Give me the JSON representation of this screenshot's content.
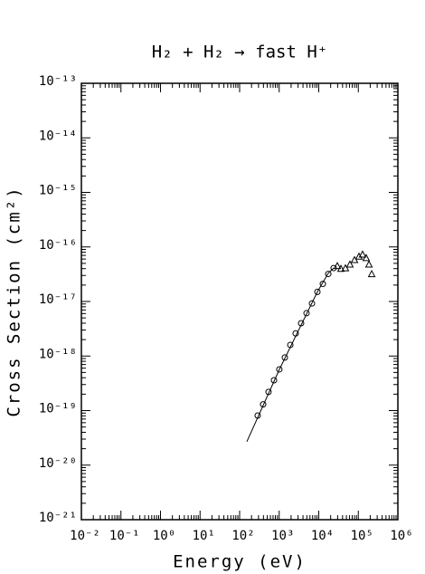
{
  "chart_data": {
    "type": "scatter",
    "title": "H₂ + H₂ → fast H⁺",
    "x_label": "Energy (eV)",
    "y_label": "Cross Section (cm²)",
    "log_x": true,
    "log_y": true,
    "minor_ticks": true,
    "xlim": [
      0.01,
      1000000
    ],
    "ylim": [
      1e-21,
      1e-13
    ],
    "xticks": [
      {
        "value": 0.01,
        "label": "10⁻²"
      },
      {
        "value": 0.1,
        "label": "10⁻¹"
      },
      {
        "value": 1,
        "label": "10⁰"
      },
      {
        "value": 10,
        "label": "10¹"
      },
      {
        "value": 100,
        "label": "10²"
      },
      {
        "value": 1000,
        "label": "10³"
      },
      {
        "value": 10000,
        "label": "10⁴"
      },
      {
        "value": 100000,
        "label": "10⁵"
      },
      {
        "value": 1000000,
        "label": "10⁶"
      }
    ],
    "yticks": [
      {
        "value": 1e-21,
        "label": "10⁻²¹"
      },
      {
        "value": 1e-20,
        "label": "10⁻²⁰"
      },
      {
        "value": 1e-19,
        "label": "10⁻¹⁹"
      },
      {
        "value": 1e-18,
        "label": "10⁻¹⁸"
      },
      {
        "value": 1e-17,
        "label": "10⁻¹⁷"
      },
      {
        "value": 1e-16,
        "label": "10⁻¹⁶"
      },
      {
        "value": 1e-15,
        "label": "10⁻¹⁵"
      },
      {
        "value": 1e-14,
        "label": "10⁻¹⁴"
      },
      {
        "value": 1e-13,
        "label": "10⁻¹³"
      }
    ],
    "series": [
      {
        "marker": "line",
        "color": "#000000",
        "x": [
          152,
          1000,
          9250,
          17400,
          23800
        ],
        "values": [
          2.7e-20,
          5.6e-19,
          1.5e-17,
          3.3e-17,
          4.1e-17
        ]
      },
      {
        "marker": "circle",
        "color": "#000000",
        "x": [
          286,
          393,
          538,
          739,
          1010,
          1390,
          1910,
          2610,
          3580,
          4910,
          6740,
          9250,
          12700,
          17400,
          23800
        ],
        "values": [
          8.1e-20,
          1.3e-19,
          2.2e-19,
          3.6e-19,
          5.7e-19,
          9.4e-19,
          1.6e-18,
          2.6e-18,
          4e-18,
          6.1e-18,
          9.2e-18,
          1.5e-17,
          2.1e-17,
          3.2e-17,
          4.1e-17
        ]
      },
      {
        "marker": "triangle",
        "color": "#000000",
        "x": [
          29500,
          36300,
          47200,
          61400,
          80200,
          104000,
          128000,
          158000,
          186000,
          218000
        ],
        "values": [
          4.5e-17,
          4e-17,
          4.1e-17,
          4.8e-17,
          5.8e-17,
          6.7e-17,
          7.3e-17,
          6.3e-17,
          4.8e-17,
          3.2e-17
        ]
      }
    ]
  }
}
